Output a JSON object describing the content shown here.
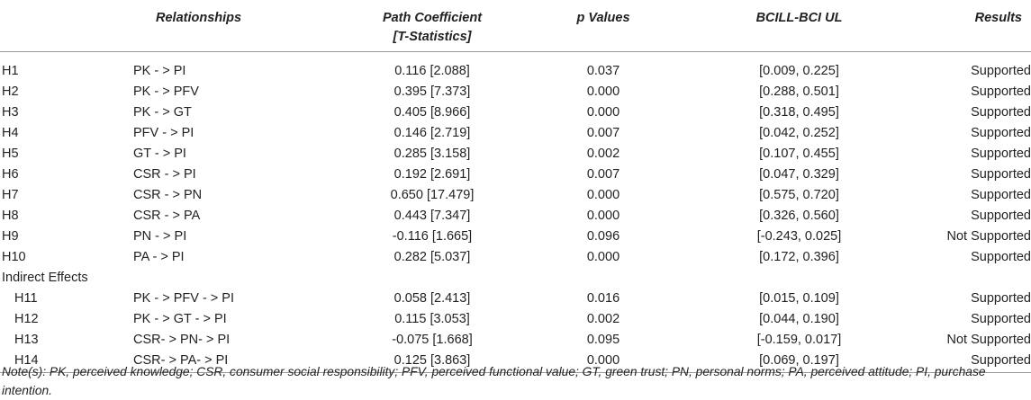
{
  "table": {
    "headers": {
      "id": "",
      "relationships": "Relationships",
      "path_line1": "Path Coefficient",
      "path_line2": "[T-Statistics]",
      "p_values": "p Values",
      "ci": "BCILL-BCI UL",
      "results": "Results"
    },
    "rows": [
      {
        "id": "H1",
        "rel": "PK - > PI",
        "path": "0.116 [2.088]",
        "p": "0.037",
        "ci": "[0.009, 0.225]",
        "result": "Supported"
      },
      {
        "id": "H2",
        "rel": "PK - > PFV",
        "path": "0.395 [7.373]",
        "p": "0.000",
        "ci": "[0.288, 0.501]",
        "result": "Supported"
      },
      {
        "id": "H3",
        "rel": "PK - > GT",
        "path": "0.405 [8.966]",
        "p": "0.000",
        "ci": "[0.318, 0.495]",
        "result": "Supported"
      },
      {
        "id": "H4",
        "rel": "PFV - > PI",
        "path": "0.146 [2.719]",
        "p": "0.007",
        "ci": "[0.042, 0.252]",
        "result": "Supported"
      },
      {
        "id": "H5",
        "rel": "GT - > PI",
        "path": "0.285 [3.158]",
        "p": "0.002",
        "ci": "[0.107, 0.455]",
        "result": "Supported"
      },
      {
        "id": "H6",
        "rel": "CSR - > PI",
        "path": "0.192 [2.691]",
        "p": "0.007",
        "ci": "[0.047, 0.329]",
        "result": "Supported"
      },
      {
        "id": "H7",
        "rel": "CSR - > PN",
        "path": "0.650 [17.479]",
        "p": "0.000",
        "ci": "[0.575, 0.720]",
        "result": "Supported"
      },
      {
        "id": "H8",
        "rel": "CSR - > PA",
        "path": "0.443 [7.347]",
        "p": "0.000",
        "ci": "[0.326, 0.560]",
        "result": "Supported"
      },
      {
        "id": "H9",
        "rel": "PN - > PI",
        "path": "-0.116 [1.665]",
        "p": "0.096",
        "ci": "[-0.243, 0.025]",
        "result": "Not Supported"
      },
      {
        "id": "H10",
        "rel": "PA - > PI",
        "path": "0.282 [5.037]",
        "p": "0.000",
        "ci": "[0.172, 0.396]",
        "result": "Supported"
      }
    ],
    "indirect_label": "Indirect Effects",
    "indirect_rows": [
      {
        "id": "H11",
        "rel": "PK - > PFV - > PI",
        "path": "0.058 [2.413]",
        "p": "0.016",
        "ci": "[0.015, 0.109]",
        "result": "Supported"
      },
      {
        "id": "H12",
        "rel": "PK - > GT - > PI",
        "path": "0.115 [3.053]",
        "p": "0.002",
        "ci": "[0.044, 0.190]",
        "result": "Supported"
      },
      {
        "id": "H13",
        "rel": "CSR- > PN- > PI",
        "path": "-0.075 [1.668]",
        "p": "0.095",
        "ci": "[-0.159, 0.017]",
        "result": "Not Supported"
      },
      {
        "id": "H14",
        "rel": "CSR- > PA- > PI",
        "path": "0.125 [3.863]",
        "p": "0.000",
        "ci": "[0.069, 0.197]",
        "result": "Supported"
      }
    ]
  },
  "note": "Note(s): PK, perceived knowledge; CSR, consumer social responsibility; PFV, perceived functional value; GT, green trust; PN, personal norms; PA, perceived attitude; PI, purchase intention."
}
